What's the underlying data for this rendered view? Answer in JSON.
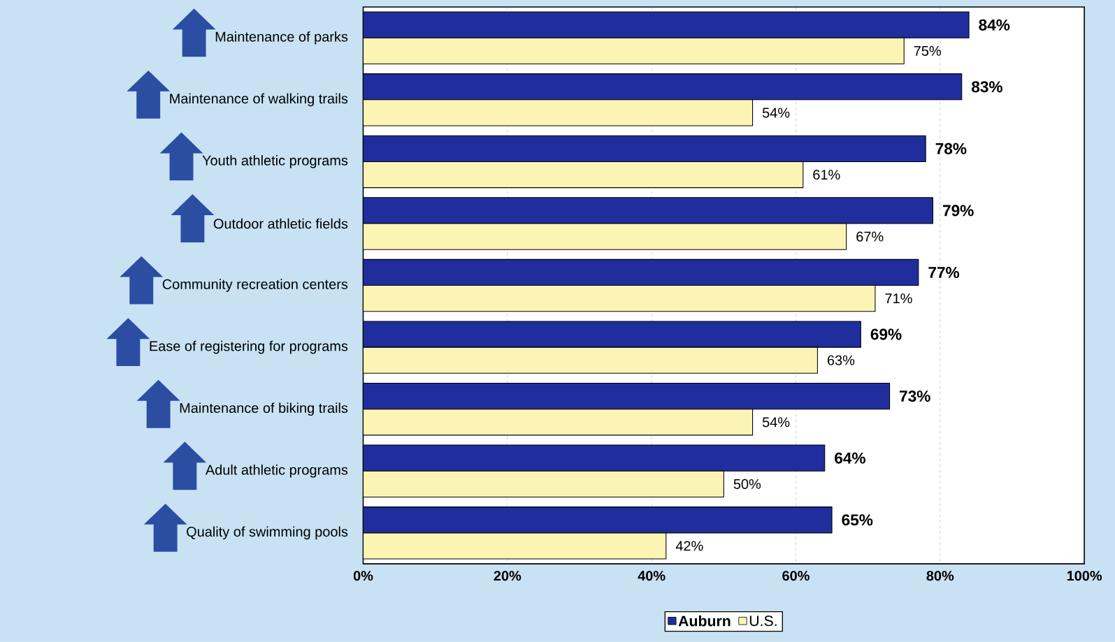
{
  "chart_data": {
    "type": "bar",
    "orientation": "horizontal",
    "categories": [
      "Maintenance of parks",
      "Maintenance of walking trails",
      "Youth athletic programs",
      "Outdoor athletic fields",
      "Community recreation centers",
      "Ease of registering for programs",
      "Maintenance of biking trails",
      "Adult athletic programs",
      "Quality of swimming pools"
    ],
    "series": [
      {
        "name": "Auburn",
        "color": "#1f2e9c",
        "values": [
          84,
          83,
          78,
          79,
          77,
          69,
          73,
          64,
          65
        ],
        "value_labels": [
          "84%",
          "83%",
          "78%",
          "79%",
          "77%",
          "69%",
          "73%",
          "64%",
          "65%"
        ]
      },
      {
        "name": "U.S.",
        "color": "#fbf4b4",
        "values": [
          75,
          54,
          61,
          67,
          71,
          63,
          54,
          50,
          42
        ],
        "value_labels": [
          "75%",
          "54%",
          "61%",
          "67%",
          "71%",
          "63%",
          "54%",
          "50%",
          "42%"
        ]
      }
    ],
    "xlim": [
      0,
      100
    ],
    "xticks": [
      {
        "value": 0,
        "label": "0%"
      },
      {
        "value": 20,
        "label": "20%"
      },
      {
        "value": 40,
        "label": "40%"
      },
      {
        "value": 60,
        "label": "60%"
      },
      {
        "value": 80,
        "label": "80%"
      },
      {
        "value": 100,
        "label": "100%"
      }
    ],
    "grid": "x",
    "legend": "bottom"
  }
}
